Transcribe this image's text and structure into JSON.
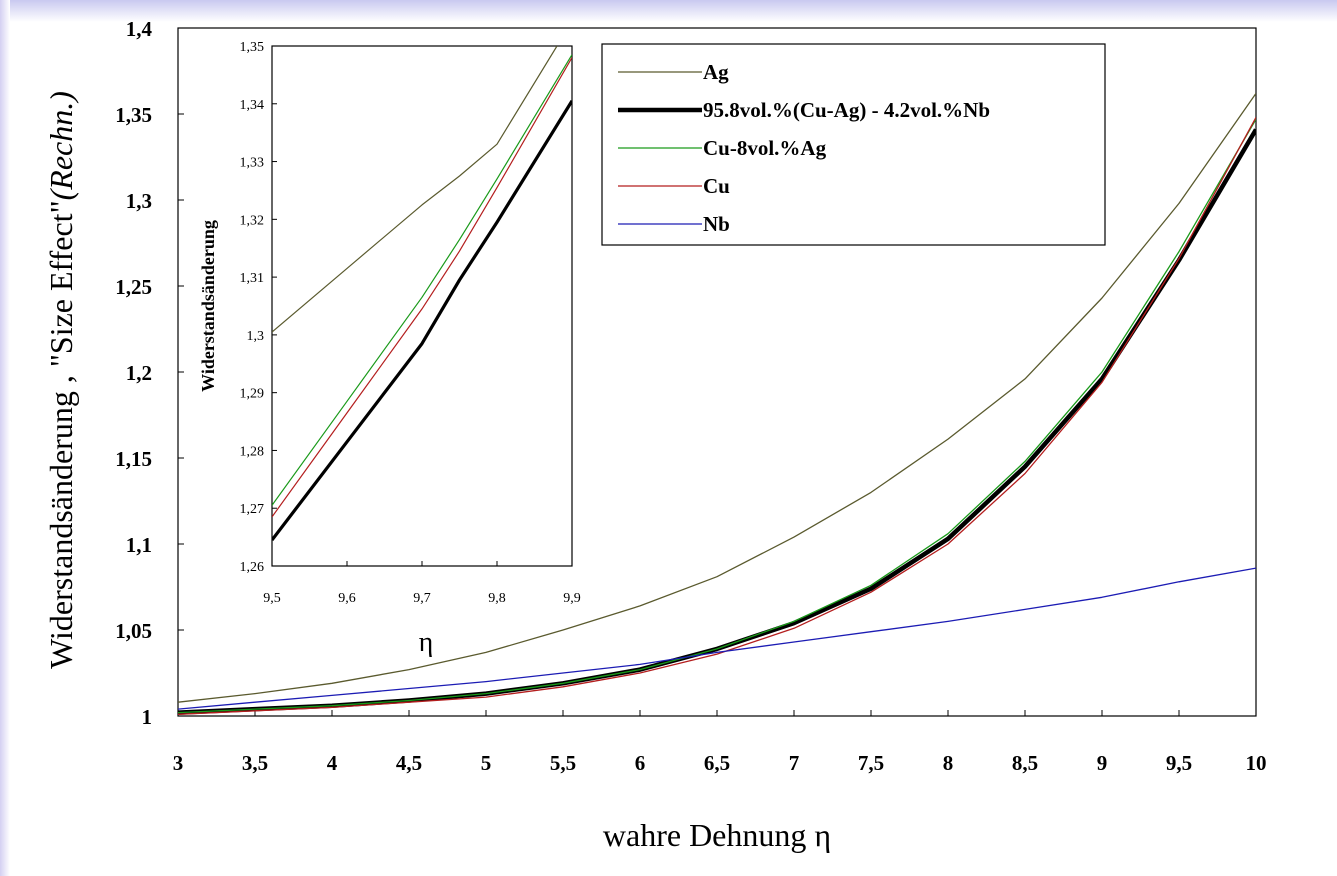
{
  "chart_data": [
    {
      "id": "main",
      "type": "line",
      "xlabel_prefix": "wahre Dehnung ",
      "xlabel_symbol": "η",
      "ylabel_prefix": "Widerstandsänderung , \"Size Effect\"",
      "ylabel_suffix": "(Rechn.)",
      "xlim": [
        3,
        10
      ],
      "ylim": [
        1,
        1.4
      ],
      "x_ticks": [
        "3",
        "3,5",
        "4",
        "4,5",
        "5",
        "5,5",
        "6",
        "6,5",
        "7",
        "7,5",
        "8",
        "8,5",
        "9",
        "9,5",
        "10"
      ],
      "y_ticks": [
        "1",
        "1,05",
        "1,1",
        "1,15",
        "1,2",
        "1,25",
        "1,3",
        "1,35",
        "1,4"
      ],
      "legend_position": "top-right",
      "series": [
        {
          "name": "Ag",
          "color": "#5a5a2e",
          "width": 1.3,
          "x": [
            3,
            3.5,
            4,
            4.5,
            5,
            5.5,
            6,
            6.5,
            7,
            7.5,
            8,
            8.5,
            9,
            9.5,
            10
          ],
          "y": [
            1.008,
            1.013,
            1.019,
            1.027,
            1.037,
            1.05,
            1.064,
            1.081,
            1.104,
            1.13,
            1.161,
            1.196,
            1.243,
            1.298,
            1.362
          ]
        },
        {
          "name": "95.8vol.%(Cu-Ag) - 4.2vol.%Nb",
          "color": "#000000",
          "width": 4.5,
          "x": [
            3,
            3.5,
            4,
            4.5,
            5,
            5.5,
            6,
            6.5,
            7,
            7.5,
            8,
            8.5,
            9,
            9.5,
            10
          ],
          "y": [
            1.002,
            1.004,
            1.006,
            1.009,
            1.013,
            1.019,
            1.027,
            1.039,
            1.054,
            1.074,
            1.103,
            1.145,
            1.196,
            1.265,
            1.341
          ]
        },
        {
          "name": "Cu-8vol.%Ag",
          "color": "#1a9a1a",
          "width": 1.3,
          "x": [
            3,
            3.5,
            4,
            4.5,
            5,
            5.5,
            6,
            6.5,
            7,
            7.5,
            8,
            8.5,
            9,
            9.5,
            10
          ],
          "y": [
            1.002,
            1.004,
            1.006,
            1.009,
            1.013,
            1.019,
            1.027,
            1.039,
            1.055,
            1.076,
            1.106,
            1.148,
            1.2,
            1.27,
            1.347
          ]
        },
        {
          "name": "Cu",
          "color": "#b41e1e",
          "width": 1.3,
          "x": [
            3,
            3.5,
            4,
            4.5,
            5,
            5.5,
            6,
            6.5,
            7,
            7.5,
            8,
            8.5,
            9,
            9.5,
            10
          ],
          "y": [
            1.001,
            1.003,
            1.005,
            1.008,
            1.011,
            1.017,
            1.025,
            1.036,
            1.051,
            1.072,
            1.1,
            1.141,
            1.194,
            1.266,
            1.348
          ]
        },
        {
          "name": "Nb",
          "color": "#1c1cb4",
          "width": 1.3,
          "x": [
            3,
            3.5,
            4,
            4.5,
            5,
            5.5,
            6,
            6.5,
            7,
            7.5,
            8,
            8.5,
            9,
            9.5,
            10
          ],
          "y": [
            1.004,
            1.008,
            1.012,
            1.016,
            1.02,
            1.025,
            1.03,
            1.037,
            1.043,
            1.049,
            1.055,
            1.062,
            1.069,
            1.078,
            1.086
          ]
        }
      ]
    },
    {
      "id": "inset",
      "type": "line",
      "xlabel": "η",
      "ylabel": "Widerstandsänderung",
      "xlim": [
        9.5,
        9.9
      ],
      "ylim": [
        1.26,
        1.35
      ],
      "x_ticks": [
        "9,5",
        "9,6",
        "9,7",
        "9,8",
        "9,9"
      ],
      "y_ticks": [
        "1,26",
        "1,27",
        "1,28",
        "1,29",
        "1,3",
        "1,31",
        "1,32",
        "1,33",
        "1,34",
        "1,35"
      ],
      "series": [
        {
          "name": "Ag",
          "color": "#5a5a2e",
          "width": 1.2,
          "x": [
            9.5,
            9.6,
            9.7,
            9.75,
            9.8,
            9.88
          ],
          "y": [
            1.3005,
            1.3115,
            1.3225,
            1.3275,
            1.333,
            1.35
          ]
        },
        {
          "name": "95.8vol.%(Cu-Ag) - 4.2vol.%Nb",
          "color": "#000000",
          "width": 3.2,
          "x": [
            9.5,
            9.6,
            9.7,
            9.75,
            9.8,
            9.9
          ],
          "y": [
            1.2645,
            1.2815,
            1.2985,
            1.3095,
            1.3195,
            1.3405
          ]
        },
        {
          "name": "Cu-8vol.%Ag",
          "color": "#1a9a1a",
          "width": 1.2,
          "x": [
            9.5,
            9.6,
            9.7,
            9.75,
            9.8,
            9.9
          ],
          "y": [
            1.2705,
            1.2885,
            1.3065,
            1.3165,
            1.327,
            1.3485
          ]
        },
        {
          "name": "Cu",
          "color": "#b41e1e",
          "width": 1.2,
          "x": [
            9.5,
            9.6,
            9.7,
            9.75,
            9.8,
            9.9
          ],
          "y": [
            1.2685,
            1.2865,
            1.3045,
            1.3145,
            1.3255,
            1.348
          ]
        }
      ]
    }
  ]
}
